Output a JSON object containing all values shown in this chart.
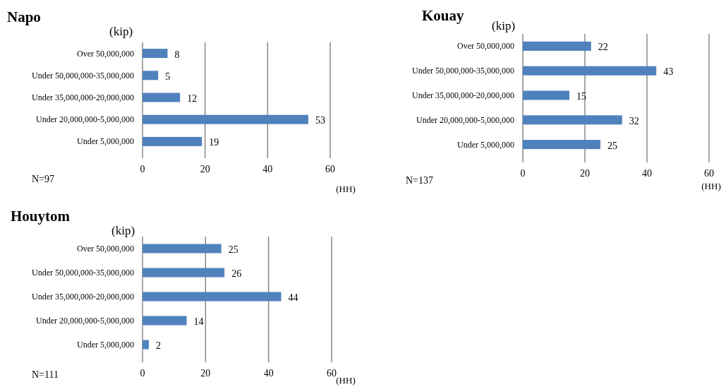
{
  "chart_data": [
    {
      "type": "bar",
      "orientation": "horizontal",
      "title": "Napo",
      "ylabel": "(kip)",
      "xlabel": "(HH)",
      "categories": [
        "Over 50,000,000",
        "Under 50,000,000-35,000,000",
        "Under 35,000,000-20,000,000",
        "Under 20,000,000-5,000,000",
        "Under 5,000,000"
      ],
      "values": [
        8,
        5,
        12,
        53,
        19
      ],
      "color": "#4f81bd",
      "xlim": [
        0,
        60
      ],
      "xticks": [
        0,
        20,
        40,
        60
      ],
      "grid": "x",
      "data_labels": true,
      "annotations": [
        "N=97"
      ]
    },
    {
      "type": "bar",
      "orientation": "horizontal",
      "title": "Kouay",
      "ylabel": "(kip)",
      "xlabel": "(HH)",
      "categories": [
        "Over 50,000,000",
        "Under 50,000,000-35,000,000",
        "Under 35,000,000-20,000,000",
        "Under 20,000,000-5,000,000",
        "Under 5,000,000"
      ],
      "values": [
        22,
        43,
        15,
        32,
        25
      ],
      "color": "#4f81bd",
      "xlim": [
        0,
        60
      ],
      "xticks": [
        0,
        20,
        40,
        60
      ],
      "grid": "x",
      "data_labels": true,
      "annotations": [
        "N=137"
      ]
    },
    {
      "type": "bar",
      "orientation": "horizontal",
      "title": "Houytom",
      "ylabel": "(kip)",
      "xlabel": "(HH)",
      "categories": [
        "Over 50,000,000",
        "Under 50,000,000-35,000,000",
        "Under 35,000,000-20,000,000",
        "Under 20,000,000-5,000,000",
        "Under 5,000,000"
      ],
      "values": [
        25,
        26,
        44,
        14,
        2
      ],
      "color": "#4f81bd",
      "xlim": [
        0,
        60
      ],
      "xticks": [
        0,
        20,
        40,
        60
      ],
      "grid": "x",
      "data_labels": true,
      "annotations": [
        "N=111"
      ]
    }
  ]
}
